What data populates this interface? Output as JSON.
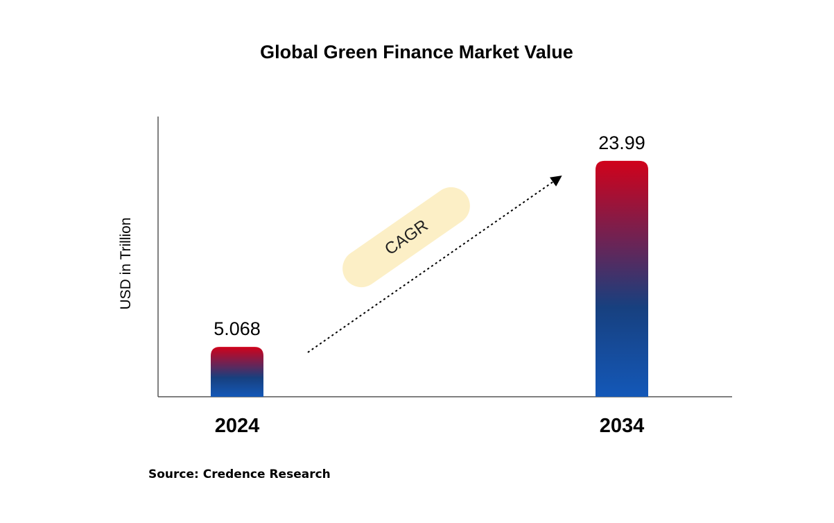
{
  "chart_data": {
    "type": "bar",
    "title": "Global Green Finance Market Value",
    "ylabel": "USD in Trillion",
    "xlabel": "",
    "categories": [
      "2024",
      "2034"
    ],
    "values": [
      5.068,
      23.99
    ],
    "value_labels": [
      "5.068",
      "23.99"
    ],
    "ylim": [
      0,
      28.5
    ],
    "grid": false,
    "legend": "none",
    "annotation": "CAGR",
    "source": "Source: Credence Research",
    "colors": {
      "bar_top": "#d0021b",
      "bar_mid": "#4a2f6e",
      "bar_bottom": "#1458b8",
      "cagr_badge": "#fcefc6",
      "axis": "#555555"
    }
  }
}
